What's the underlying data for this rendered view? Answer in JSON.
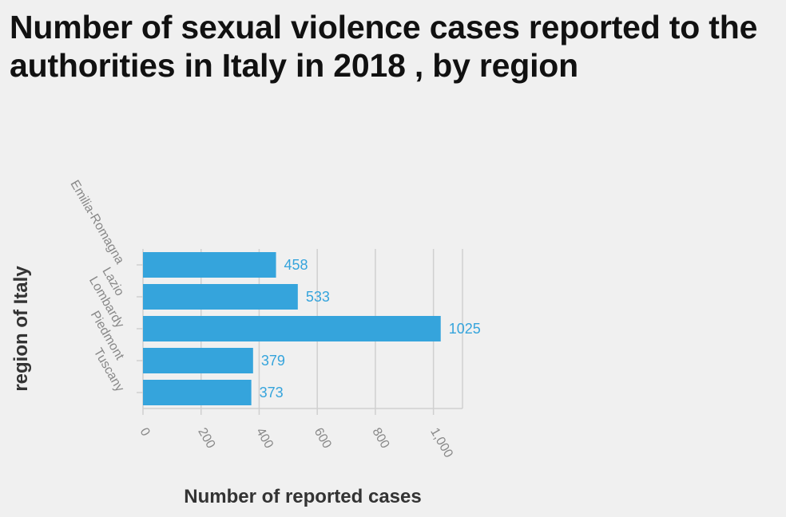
{
  "chart_data": {
    "type": "bar",
    "orientation": "horizontal",
    "title": "Number of sexual violence cases reported to the authorities in Italy in 2018 , by region",
    "xlabel": "Number of reported cases",
    "ylabel": "region of Italy",
    "categories": [
      "Emilia-Romagna",
      "Lazio",
      "Lombardy",
      "Piedmont",
      "Tuscany"
    ],
    "values": [
      458,
      533,
      1025,
      379,
      373
    ],
    "xlim": [
      0,
      1100
    ],
    "xticks": [
      0,
      200,
      400,
      600,
      800,
      1000
    ],
    "xtick_labels": [
      "0",
      "200",
      "400",
      "600",
      "800",
      "1,000"
    ],
    "grid": "vertical",
    "legend": "none",
    "colors": {
      "bar": "#35a4dc",
      "label": "#35a4dc",
      "grid": "#d0d0d0",
      "background": "#f0f0f0"
    }
  }
}
